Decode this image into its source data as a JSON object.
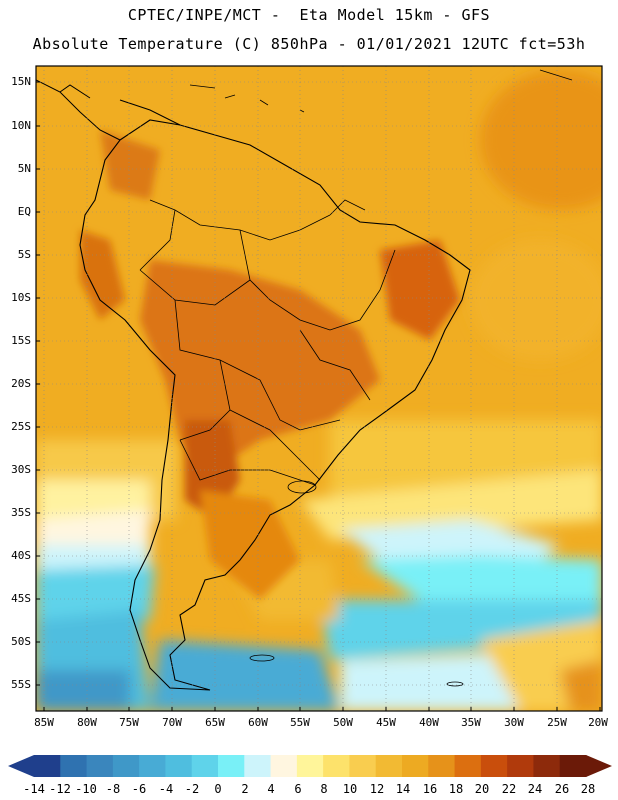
{
  "title_line1": "CPTEC/INPE/MCT -  Eta Model 15km - GFS",
  "title_line2": "Absolute Temperature (C) 850hPa - 01/01/2021 12UTC fct=53h",
  "lat_labels": [
    "15N",
    "10N",
    "5N",
    "EQ",
    "5S",
    "10S",
    "15S",
    "20S",
    "25S",
    "30S",
    "35S",
    "40S",
    "45S",
    "50S",
    "55S"
  ],
  "lon_labels": [
    "85W",
    "80W",
    "75W",
    "70W",
    "65W",
    "60W",
    "55W",
    "50W",
    "45W",
    "40W",
    "35W",
    "30W",
    "25W",
    "20W"
  ],
  "colorbar": {
    "labels": [
      "-14",
      "-12",
      "-10",
      "-8",
      "-6",
      "-4",
      "-2",
      "0",
      "2",
      "4",
      "6",
      "8",
      "10",
      "12",
      "14",
      "16",
      "18",
      "20",
      "22",
      "24",
      "26",
      "28"
    ],
    "colors": [
      "#1f3f8c",
      "#2a5aa0",
      "#2f72b0",
      "#3a86bd",
      "#3f98c8",
      "#48abd5",
      "#4fbedf",
      "#5fd3ea",
      "#79f0f7",
      "#cdf4fb",
      "#fff6e0",
      "#fff59a",
      "#fde26b",
      "#f9cd4f",
      "#f2ba33",
      "#edaa22",
      "#e6921a",
      "#dc6f10",
      "#c94e0c",
      "#b03a0c",
      "#8d2a0b",
      "#6b1a08"
    ]
  },
  "colors": {
    "ocean_warm": "#f3ac26",
    "land_hot": "#d96a10",
    "cold_water": "#5fd3ea",
    "border": "#000000"
  }
}
